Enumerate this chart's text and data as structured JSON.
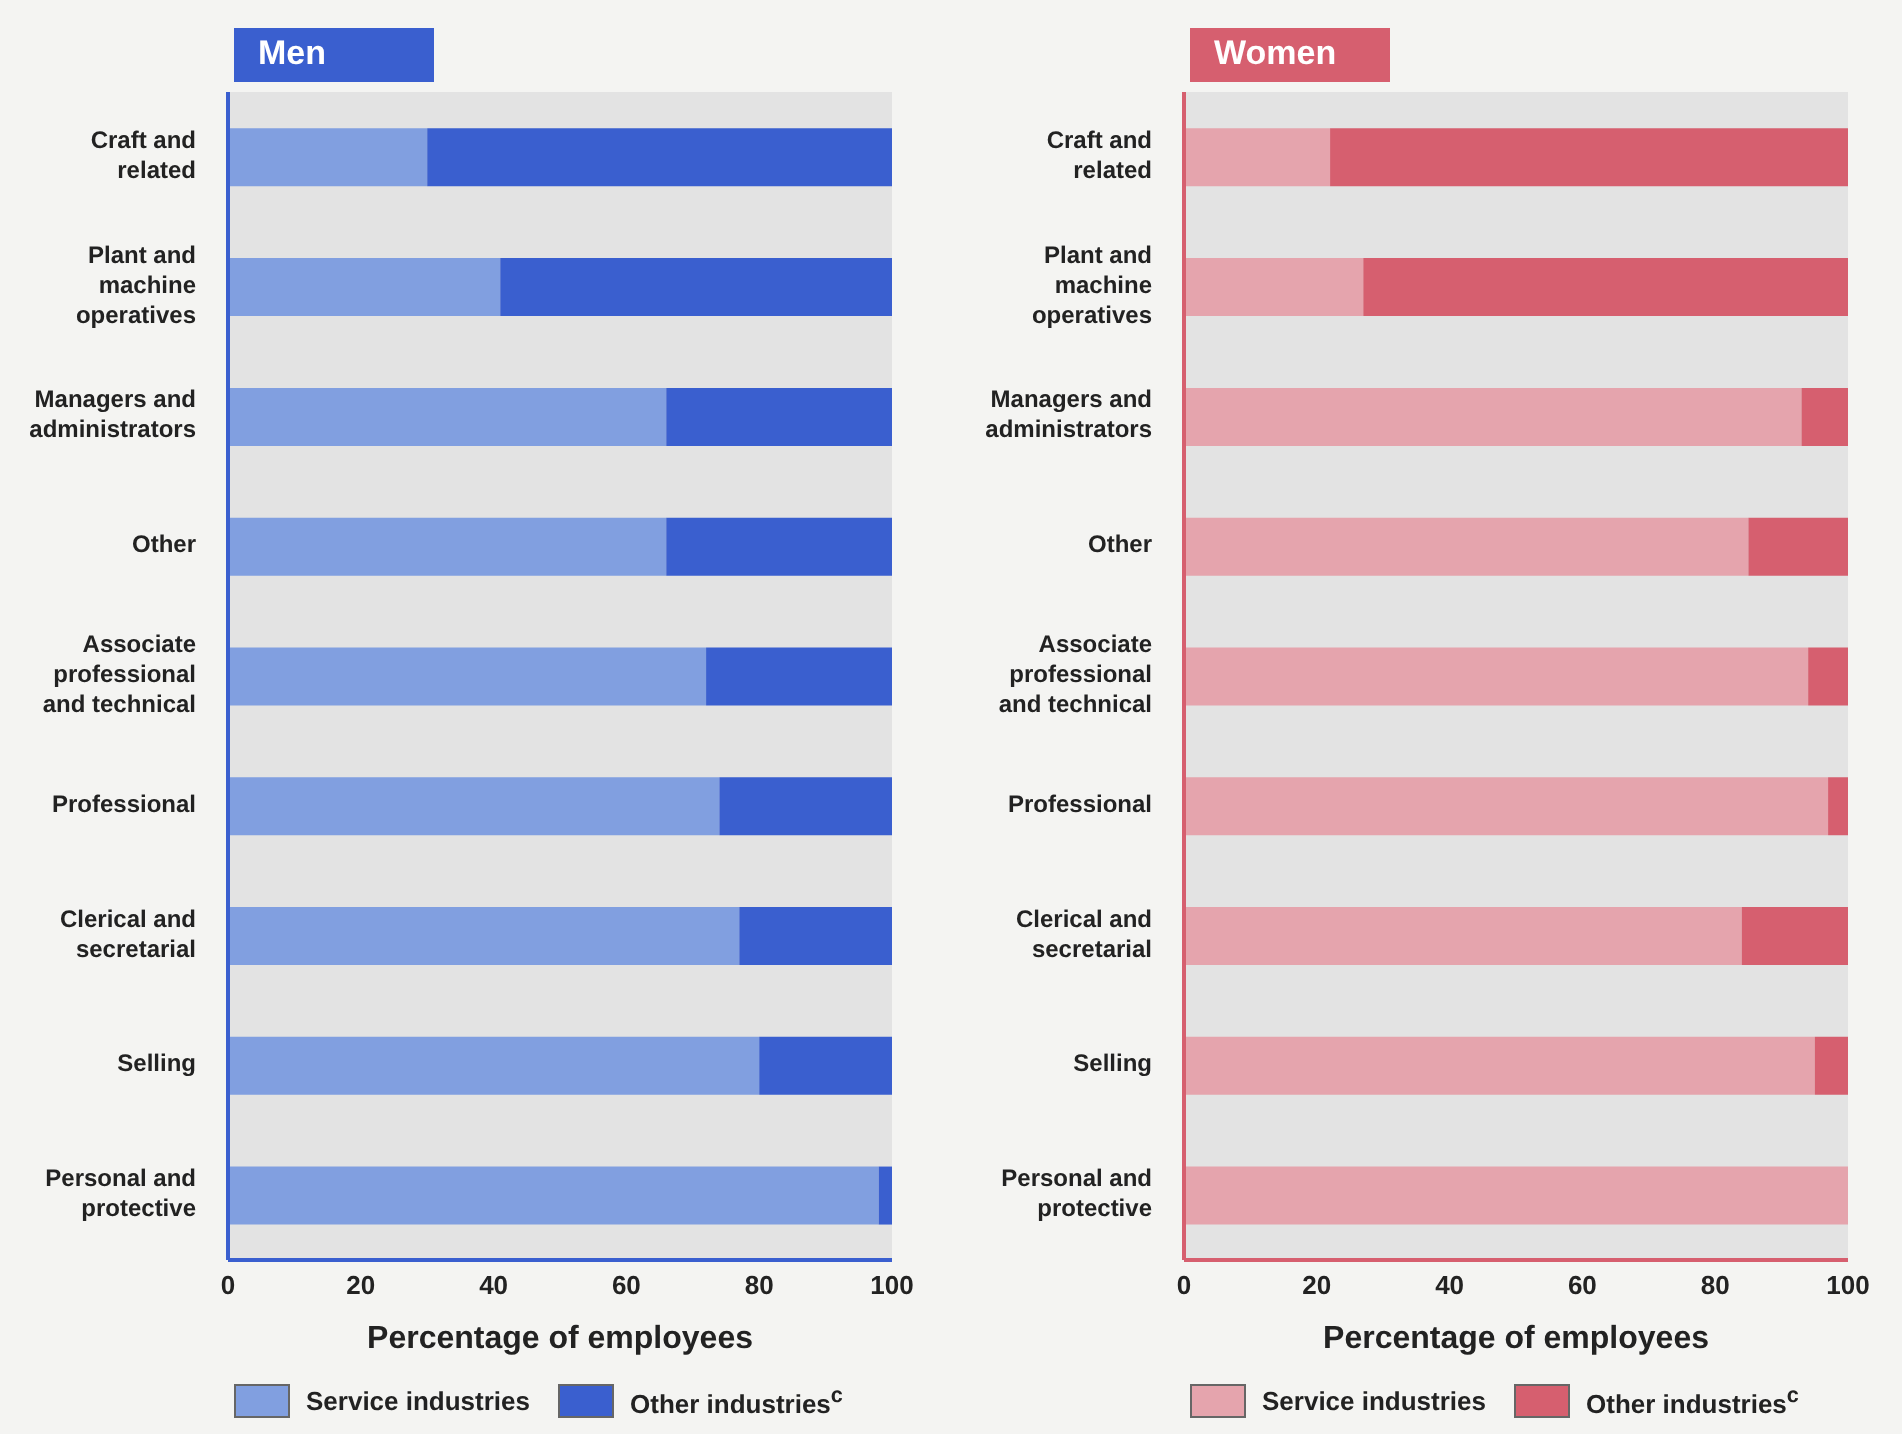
{
  "chart_data": [
    {
      "type": "bar",
      "title": "Men",
      "orientation": "horizontal",
      "stacked": true,
      "xlabel": "Percentage of employees",
      "categories": [
        "Craft and related",
        "Plant and machine operatives",
        "Managers and administrators",
        "Other",
        "Associate professional and technical",
        "Professional",
        "Clerical and secretarial",
        "Selling",
        "Personal and protective"
      ],
      "series": [
        {
          "name": "Service industries",
          "color": "#819fe0",
          "values": [
            30,
            41,
            66,
            66,
            72,
            74,
            77,
            80,
            98
          ]
        },
        {
          "name": "Other industries$^{c}$",
          "color": "#3a5fcf",
          "values": [
            70,
            59,
            34,
            34,
            28,
            26,
            23,
            20,
            2
          ]
        }
      ],
      "xlim": [
        0,
        100
      ],
      "xticks": [
        0,
        20,
        40,
        60,
        80,
        100
      ],
      "legend": "bottom"
    },
    {
      "type": "bar",
      "title": "Women",
      "orientation": "horizontal",
      "stacked": true,
      "xlabel": "Percentage of employees",
      "categories": [
        "Craft and related",
        "Plant and machine operatives",
        "Managers and administrators",
        "Other",
        "Associate professional and technical",
        "Professional",
        "Clerical and secretarial",
        "Selling",
        "Personal and protective"
      ],
      "series": [
        {
          "name": "Service industries",
          "color": "#e5a4ad",
          "values": [
            22,
            27,
            93,
            85,
            94,
            97,
            84,
            95,
            100
          ]
        },
        {
          "name": "Other industries$^{c}$",
          "color": "#d65f6f",
          "values": [
            78,
            73,
            7,
            15,
            6,
            3,
            16,
            5,
            0
          ]
        }
      ],
      "xlim": [
        0,
        100
      ],
      "xticks": [
        0,
        20,
        40,
        60,
        80,
        100
      ],
      "legend": "bottom"
    }
  ]
}
